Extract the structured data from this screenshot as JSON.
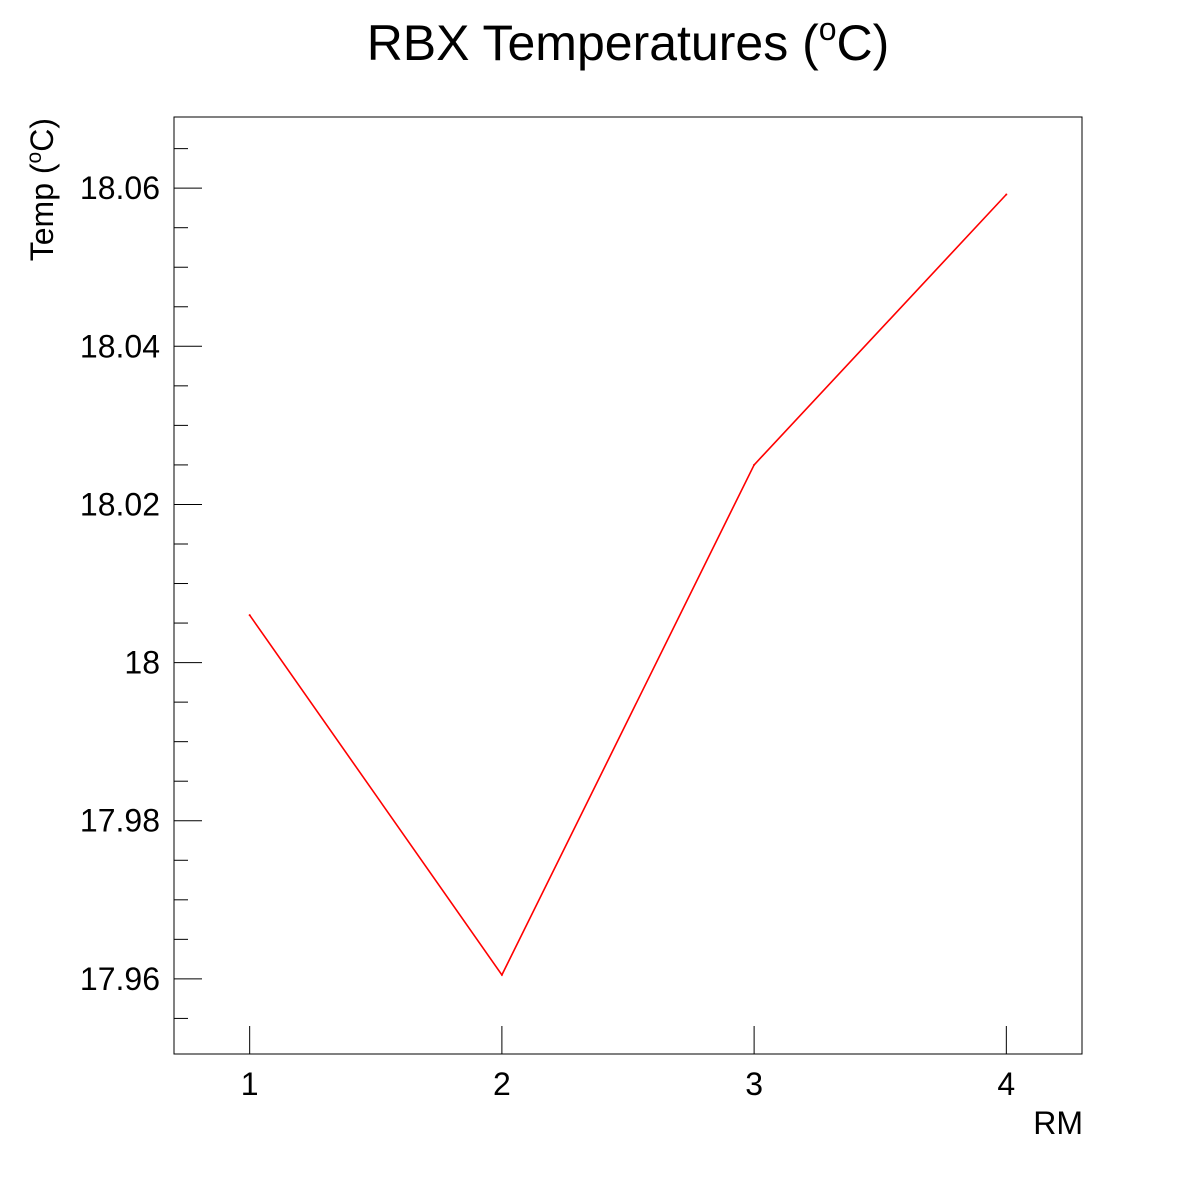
{
  "chart_data": {
    "type": "line",
    "title": "RBX Temperatures (",
    "title_sup": "o",
    "title_tail": "C)",
    "xlabel": "RM",
    "ylabel": "Temp (",
    "ylabel_sup": "o",
    "ylabel_tail": "C)",
    "x": [
      1,
      2,
      3,
      4
    ],
    "x_tick_labels": [
      "1",
      "2",
      "3",
      "4"
    ],
    "series": [
      {
        "values": [
          18.006,
          17.9605,
          18.025,
          18.0592
        ],
        "color": "#ff0000"
      }
    ],
    "xlim": [
      0.7,
      4.3
    ],
    "ylim": [
      17.9505,
      18.069
    ],
    "y_ticks": [
      17.96,
      17.98,
      18.0,
      18.02,
      18.04,
      18.06
    ],
    "y_tick_labels": [
      "17.96",
      "17.98",
      "18",
      "18.02",
      "18.04",
      "18.06"
    ],
    "grid": false,
    "legend": false
  }
}
